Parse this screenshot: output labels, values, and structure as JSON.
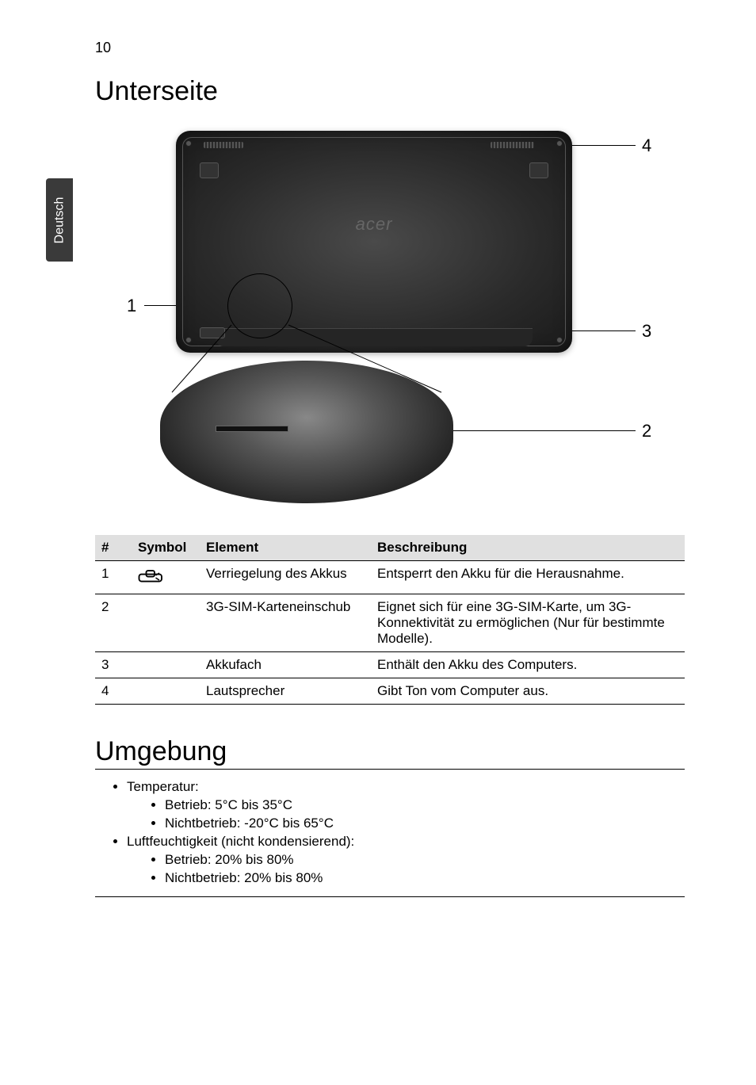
{
  "page_number": "10",
  "side_tab": "Deutsch",
  "section1_title": "Unterseite",
  "diagram": {
    "logo": "acer",
    "callouts": {
      "n1": "1",
      "n2": "2",
      "n3": "3",
      "n4": "4"
    }
  },
  "table": {
    "headers": {
      "num": "#",
      "symbol": "Symbol",
      "element": "Element",
      "desc": "Beschreibung"
    },
    "rows": [
      {
        "num": "1",
        "has_icon": true,
        "element": "Verriegelung des Akkus",
        "desc": "Entsperrt den Akku für die Herausnahme."
      },
      {
        "num": "2",
        "has_icon": false,
        "element": "3G-SIM-Karteneinschub",
        "desc": "Eignet sich für eine 3G-SIM-Karte, um 3G-Konnektivität zu ermöglichen (Nur für bestimmte Modelle)."
      },
      {
        "num": "3",
        "has_icon": false,
        "element": "Akkufach",
        "desc": "Enthält den Akku des Computers."
      },
      {
        "num": "4",
        "has_icon": false,
        "element": "Lautsprecher",
        "desc": "Gibt Ton vom Computer aus."
      }
    ]
  },
  "section2_title": "Umgebung",
  "environment": {
    "items": [
      {
        "label": "Temperatur:",
        "sub": [
          "Betrieb: 5°C bis 35°C",
          "Nichtbetrieb: -20°C bis 65°C"
        ]
      },
      {
        "label": "Luftfeuchtigkeit (nicht kondensierend):",
        "sub": [
          "Betrieb: 20% bis 80%",
          "Nichtbetrieb: 20% bis 80%"
        ]
      }
    ]
  }
}
